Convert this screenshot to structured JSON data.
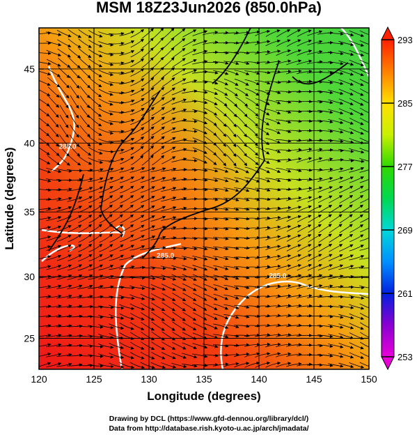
{
  "chart_data": {
    "type": "map",
    "title": "MSM 18Z23Jun2026 (850.0hPa)",
    "x_label": "Longitude (degrees)",
    "y_label": "Latitude  (degrees)",
    "xlim": [
      120,
      150
    ],
    "ylim": [
      22.4,
      47.6
    ],
    "xticks": [
      120,
      125,
      130,
      135,
      140,
      145,
      150
    ],
    "yticks": [
      25,
      30,
      35,
      40,
      45
    ],
    "projection": "mercator",
    "grid": true,
    "colorbar": {
      "lim": [
        253,
        293
      ],
      "ticks": [
        253,
        261,
        269,
        277,
        285,
        293
      ],
      "colors": [
        "#e800d8",
        "#8a00d0",
        "#0020e0",
        "#0090ff",
        "#00d8d8",
        "#00d850",
        "#30d800",
        "#c8f000",
        "#ffe000",
        "#ff8000",
        "#ff2000"
      ]
    },
    "contour_labels": [
      {
        "label": "285.0",
        "x": 122.6,
        "y": 39.6
      },
      {
        "label": "285.0",
        "x": 131.5,
        "y": 31.5
      },
      {
        "label": "285.0",
        "x": 141.7,
        "y": 29.9
      }
    ],
    "footer": [
      "Drawing by DCL (https://www.gfd-dennou.org/library/dcl/)",
      "Data from http://database.rish.kyoto-u.ac.jp/arch/jmadata/"
    ]
  }
}
